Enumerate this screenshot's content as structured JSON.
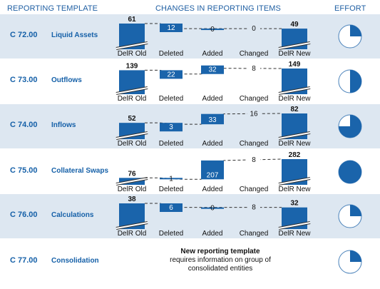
{
  "headers": {
    "template": "REPORTING TEMPLATE",
    "changes": "CHANGES IN REPORTING ITEMS",
    "effort": "EFFORT"
  },
  "step_labels": [
    "DelR Old",
    "Deleted",
    "Added",
    "Changed",
    "DelR New"
  ],
  "colors": {
    "accent": "#1560a8",
    "bar": "#1a64ab",
    "shade": "#dde7f1",
    "pie_outline": "#4a82ba"
  },
  "rows": [
    {
      "code": "C 72.00",
      "name": "Liquid Assets",
      "shaded": true,
      "old": 61,
      "deleted": 12,
      "added": 0,
      "changed": 0,
      "new": 49,
      "deleted_text": "12",
      "added_text": "0",
      "changed_text": "0",
      "old_text": "61",
      "new_text": "49",
      "effort": 0.25
    },
    {
      "code": "C 73.00",
      "name": "Outflows",
      "shaded": false,
      "old": 139,
      "deleted": 22,
      "added": 32,
      "changed": 8,
      "new": 149,
      "deleted_text": "22",
      "added_text": "32",
      "changed_text": "8",
      "old_text": "139",
      "new_text": "149",
      "effort": 0.5
    },
    {
      "code": "C 74.00",
      "name": "Inflows",
      "shaded": true,
      "old": 52,
      "deleted": 3,
      "added": 33,
      "changed": 16,
      "new": 82,
      "deleted_text": "3",
      "added_text": "33",
      "changed_text": "16",
      "old_text": "52",
      "new_text": "82",
      "effort": 0.75
    },
    {
      "code": "C 75.00",
      "name": "Collateral Swaps",
      "shaded": false,
      "old": 76,
      "deleted": 1,
      "added": 207,
      "changed": 8,
      "new": 282,
      "deleted_text": "1",
      "added_text": "207",
      "changed_text": "8",
      "old_text": "76",
      "new_text": "282",
      "effort": 1.0
    },
    {
      "code": "C 76.00",
      "name": "Calculations",
      "shaded": true,
      "old": 38,
      "deleted": 6,
      "added": 0,
      "changed": 8,
      "new": 32,
      "deleted_text": "6",
      "added_text": "0",
      "changed_text": "8",
      "old_text": "38",
      "new_text": "32",
      "effort": 0.25
    },
    {
      "code": "C 77.00",
      "name": "Consolidation",
      "shaded": false,
      "note_bold": "New reporting template",
      "note_rest": " requires information on group of consolidated entities",
      "effort": 0.25
    }
  ]
}
